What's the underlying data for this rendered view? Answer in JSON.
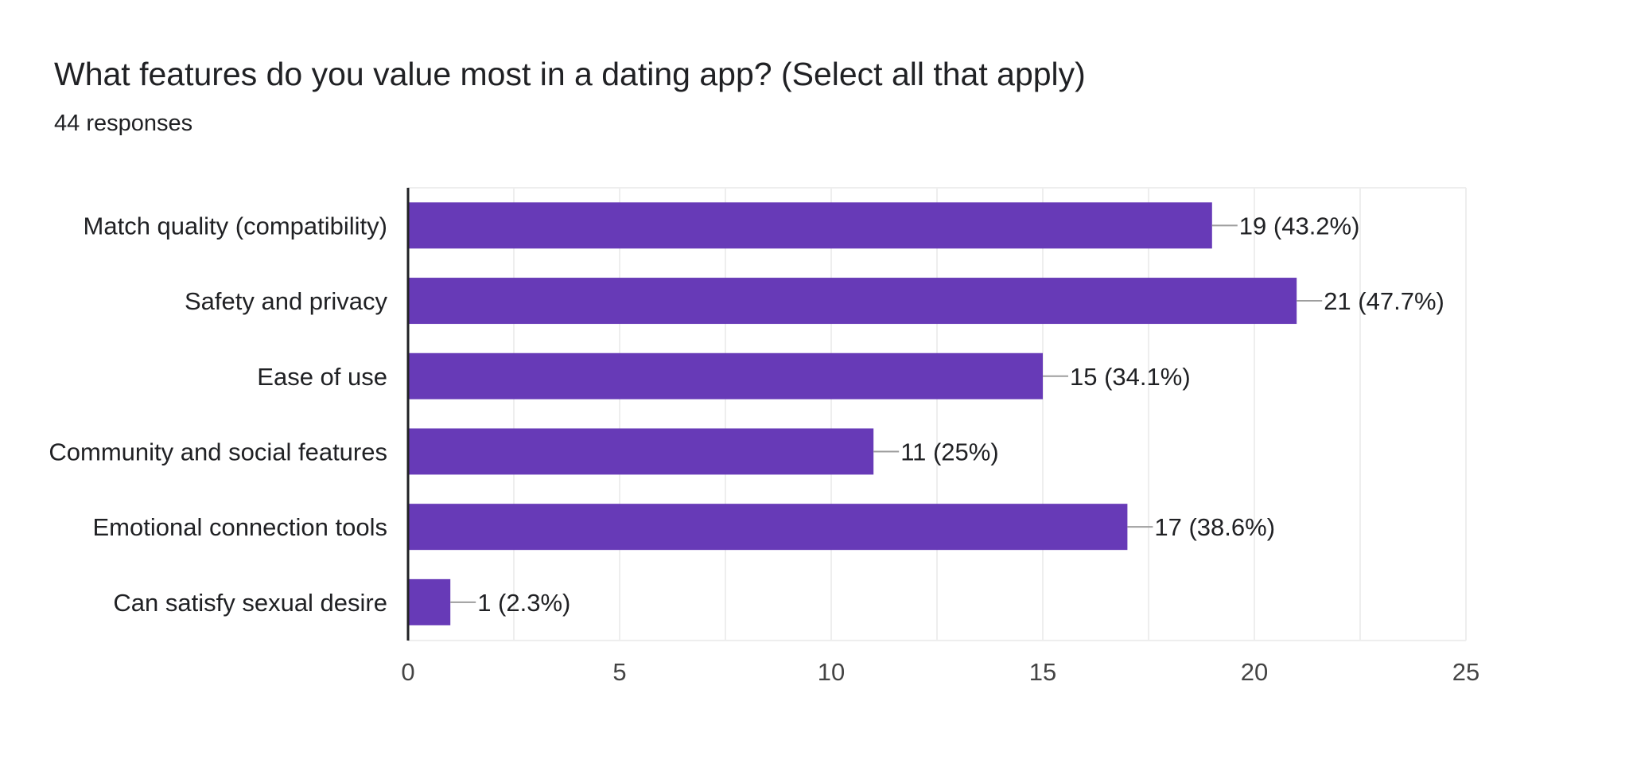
{
  "header": {
    "title": "What features do you value most in a dating app? (Select all that apply)",
    "responses": "44 responses"
  },
  "colors": {
    "bar": "#673ab7",
    "grid": "#eeeeee",
    "axis": "#202124",
    "leader": "#9e9e9e",
    "text": "#202124"
  },
  "chart_data": {
    "type": "bar",
    "orientation": "horizontal",
    "categories": [
      "Match quality (compatibility)",
      "Safety and privacy",
      "Ease of use",
      "Community and social features",
      "Emotional connection tools",
      "Can satisfy sexual desire"
    ],
    "values": [
      19,
      21,
      15,
      11,
      17,
      1
    ],
    "data_labels": [
      "19 (43.2%)",
      "21 (47.7%)",
      "15 (34.1%)",
      "11 (25%)",
      "17 (38.6%)",
      "1 (2.3%)"
    ],
    "xlim": [
      0,
      25
    ],
    "x_ticks": [
      0,
      5,
      10,
      15,
      20,
      25
    ],
    "grid": true,
    "legend": "none"
  }
}
